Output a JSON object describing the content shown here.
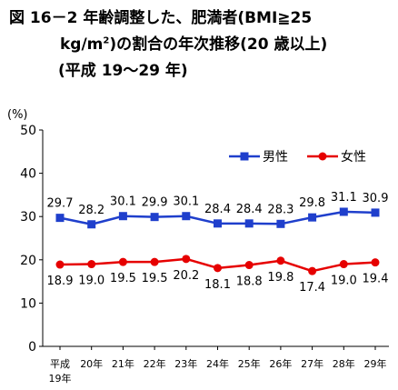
{
  "title": {
    "line1": "図 16－2  年齢調整した、肥満者(BMI≧25",
    "line2_pre": "kg/m",
    "line2_sup": "2",
    "line2_post": ")の割合の年次推移(20 歳以上)",
    "line3": "(平成 19～29 年)"
  },
  "chart_data": {
    "type": "line",
    "ylabel": "(%)",
    "ylim": [
      0,
      50
    ],
    "yticks": [
      "0",
      "10",
      "20",
      "30",
      "40",
      "50"
    ],
    "categories": [
      "平成19年",
      "20年",
      "21年",
      "22年",
      "23年",
      "24年",
      "25年",
      "26年",
      "27年",
      "28年",
      "29年"
    ],
    "category_labels": [
      [
        "平成",
        "19年"
      ],
      [
        "20年"
      ],
      [
        "21年"
      ],
      [
        "22年"
      ],
      [
        "23年"
      ],
      [
        "24年"
      ],
      [
        "25年"
      ],
      [
        "26年"
      ],
      [
        "27年"
      ],
      [
        "28年"
      ],
      [
        "29年"
      ]
    ],
    "series": [
      {
        "name": "男性",
        "color": "#1f3fcc",
        "marker": "square",
        "values": [
          29.7,
          28.2,
          30.1,
          29.9,
          30.1,
          28.4,
          28.4,
          28.3,
          29.8,
          31.1,
          30.9
        ],
        "labels": [
          "29.7",
          "28.2",
          "30.1",
          "29.9",
          "30.1",
          "28.4",
          "28.4",
          "28.3",
          "29.8",
          "31.1",
          "30.9"
        ],
        "label_position": "above"
      },
      {
        "name": "女性",
        "color": "#e60000",
        "marker": "circle",
        "values": [
          18.9,
          19.0,
          19.5,
          19.5,
          20.2,
          18.1,
          18.8,
          19.8,
          17.4,
          19.0,
          19.4
        ],
        "labels": [
          "18.9",
          "19.0",
          "19.5",
          "19.5",
          "20.2",
          "18.1",
          "18.8",
          "19.8",
          "17.4",
          "19.0",
          "19.4"
        ],
        "label_position": "below"
      }
    ],
    "legend": "top-right",
    "grid": false
  }
}
